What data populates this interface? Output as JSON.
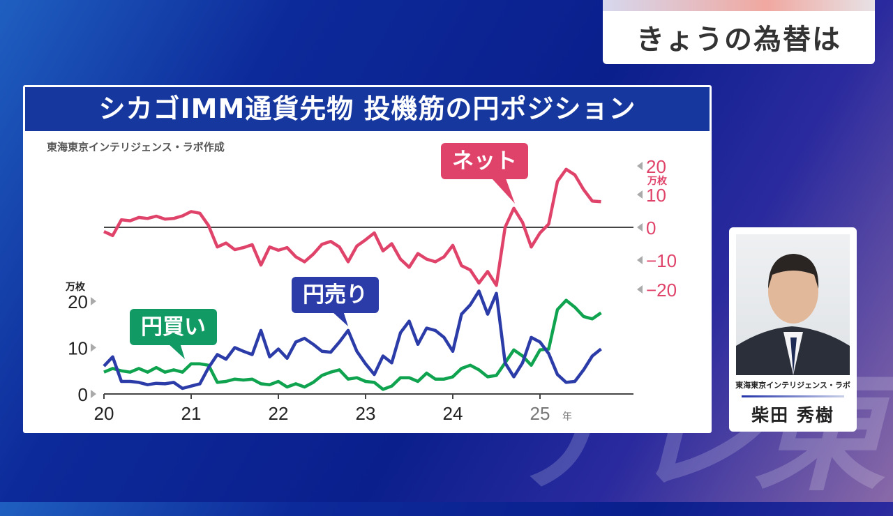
{
  "header": {
    "title": "きょうの為替は"
  },
  "watermark": "テレ東",
  "panel": {
    "title": "シカゴIMM通貨先物 投機筋の円ポジション",
    "credit": "東海東京インテリジェンス・ラボ作成"
  },
  "callouts": {
    "net": "ネット",
    "sell": "円売り",
    "buy": "円買い"
  },
  "colors": {
    "net": "#e0436a",
    "sell": "#2b3ca8",
    "buy": "#0fa34f",
    "title_bg": "#16379e"
  },
  "speaker": {
    "org": "東海東京インテリジェンス・ラボ",
    "name": "柴田 秀樹"
  },
  "chart_data": {
    "type": "line",
    "title": "シカゴIMM通貨先物 投機筋の円ポジション",
    "x_ticks": [
      "20",
      "21",
      "22",
      "23",
      "24",
      "25"
    ],
    "x_unit": "年",
    "xlim": [
      2020,
      2026.1
    ],
    "left_axis": {
      "unit": "万枚",
      "ticks": [
        "0",
        "10",
        "20"
      ],
      "ylim": [
        0,
        20
      ]
    },
    "right_axis": {
      "unit": "万枚",
      "ticks": [
        "20",
        "10",
        "0",
        "−10",
        "−20"
      ],
      "ylim": [
        -20,
        20
      ]
    },
    "x": [
      2020.0,
      2020.1,
      2020.2,
      2020.3,
      2020.4,
      2020.5,
      2020.6,
      2020.7,
      2020.8,
      2020.9,
      2021.0,
      2021.1,
      2021.2,
      2021.3,
      2021.4,
      2021.5,
      2021.6,
      2021.7,
      2021.8,
      2021.9,
      2022.0,
      2022.1,
      2022.2,
      2022.3,
      2022.4,
      2022.5,
      2022.6,
      2022.7,
      2022.8,
      2022.9,
      2023.0,
      2023.1,
      2023.2,
      2023.3,
      2023.4,
      2023.5,
      2023.6,
      2023.7,
      2023.8,
      2023.9,
      2024.0,
      2024.1,
      2024.2,
      2024.3,
      2024.4,
      2024.5,
      2024.6,
      2024.7,
      2024.8,
      2024.9,
      2025.0,
      2025.1,
      2025.2,
      2025.3,
      2025.4,
      2025.5,
      2025.6,
      2025.7
    ],
    "series": [
      {
        "name": "円買い",
        "axis": "left",
        "values": [
          4.7,
          5.5,
          5,
          4.7,
          5.5,
          4.7,
          5.7,
          4.7,
          5.2,
          4.7,
          6.5,
          6.5,
          6.2,
          2.5,
          2.7,
          3.2,
          3,
          3.2,
          2.2,
          2,
          2.7,
          1.5,
          2.2,
          1.5,
          2.5,
          4,
          4.7,
          5.2,
          3.2,
          3.5,
          2.7,
          2.5,
          1,
          1.7,
          3.5,
          3.5,
          2.7,
          4.5,
          3.2,
          3.2,
          3.7,
          5.5,
          6.2,
          5.2,
          3.7,
          4,
          6.7,
          9.5,
          8.2,
          6.2,
          9.5,
          9.7,
          18.2,
          20.2,
          18.7,
          16.7,
          16.2,
          17.5
        ]
      },
      {
        "name": "円売り",
        "axis": "left",
        "values": [
          6,
          8,
          2.7,
          2.7,
          2.5,
          2,
          2.3,
          2.2,
          2.5,
          1.2,
          1.7,
          2.2,
          5.7,
          8.5,
          7.5,
          10,
          9.2,
          8.5,
          13.7,
          8,
          9.7,
          7.7,
          11.2,
          12,
          10.7,
          9.2,
          9,
          11.2,
          13.7,
          9.2,
          6.5,
          4.2,
          8.2,
          6.7,
          13.2,
          15.7,
          10.7,
          14.2,
          13.7,
          12.2,
          9.2,
          17.2,
          19.2,
          22.2,
          17.2,
          21.7,
          6.7,
          3.7,
          6.7,
          12.2,
          11.2,
          8.7,
          4.2,
          2.5,
          2.7,
          5.2,
          8.2,
          9.7
        ]
      },
      {
        "name": "ネット",
        "axis": "right",
        "values": [
          -1.3,
          -2.5,
          2.3,
          2,
          3,
          2.7,
          3.4,
          2.5,
          2.7,
          3.5,
          4.8,
          4.3,
          0.5,
          -6,
          -4.8,
          -6.8,
          -6.2,
          -5.3,
          -11.5,
          -6,
          -7,
          -6.2,
          -9,
          -10.5,
          -8.2,
          -5.2,
          -4.3,
          -6,
          -10.5,
          -5.7,
          -3.8,
          -1.7,
          -7.2,
          -5,
          -9.7,
          -12.2,
          -8,
          -9.7,
          -10.5,
          -9,
          -5.5,
          -11.7,
          -13,
          -17,
          -13.5,
          -17.7,
          0,
          5.8,
          1.5,
          -6,
          -1.7,
          1,
          14,
          17.7,
          16,
          11.5,
          8,
          7.8
        ]
      }
    ]
  }
}
